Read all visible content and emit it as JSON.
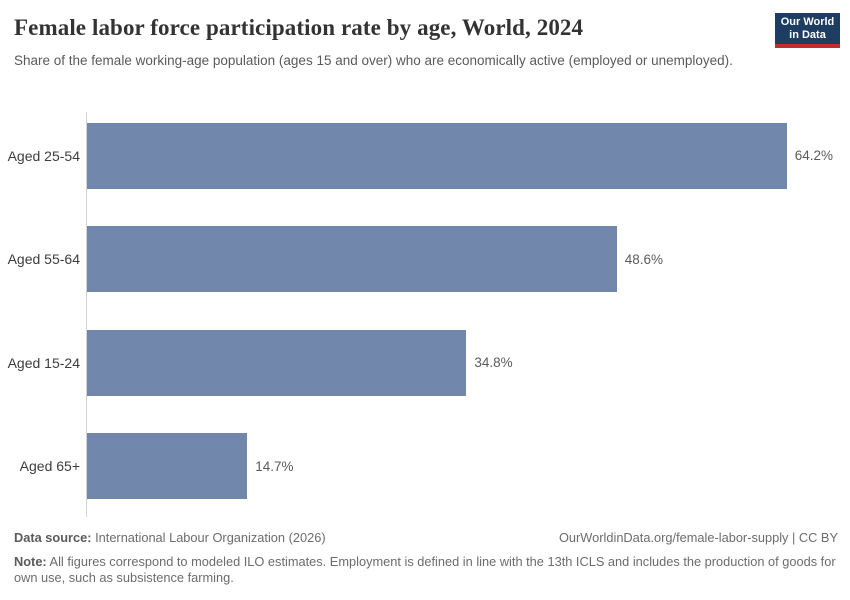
{
  "header": {
    "title": "Female labor force participation rate by age, World, 2024",
    "subtitle": "Share of the female working-age population (ages 15 and over) who are economically active (employed or unemployed).",
    "logo": {
      "line1": "Our World",
      "line2": "in Data"
    }
  },
  "colors": {
    "bar": "#7188ac",
    "axis_line": "#d4d4d4",
    "logo_bg": "#1d3d63",
    "logo_accent": "#c32e36",
    "title_text": "#333333",
    "muted_text": "#5a5a5a"
  },
  "chart_data": {
    "type": "bar",
    "orientation": "horizontal",
    "title": "Female labor force participation rate by age, World, 2024",
    "categories": [
      "Aged 25-54",
      "Aged 55-64",
      "Aged 15-24",
      "Aged 65+"
    ],
    "values": [
      64.2,
      48.6,
      34.8,
      14.7
    ],
    "value_labels": [
      "64.2%",
      "48.6%",
      "34.8%",
      "14.7%"
    ],
    "xlabel": "",
    "ylabel": "",
    "xlim": [
      0,
      70
    ],
    "grid": false,
    "legend": false,
    "bar_color": "#7188ac"
  },
  "footer": {
    "data_source_label": "Data source:",
    "data_source": " International Labour Organization (2026)",
    "attribution": "OurWorldinData.org/female-labor-supply | CC BY",
    "note_label": "Note:",
    "note": " All figures correspond to modeled ILO estimates. Employment is defined in line with the 13th ICLS and includes the production of goods for own use, such as subsistence farming."
  }
}
